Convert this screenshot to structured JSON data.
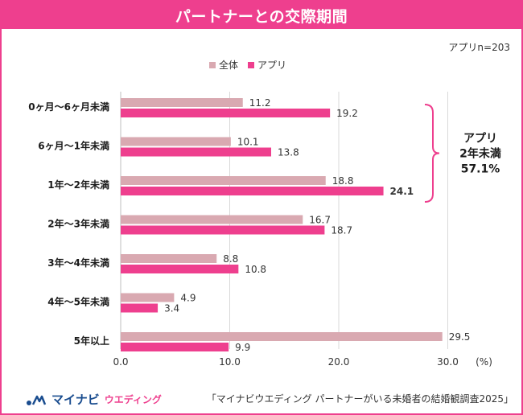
{
  "header": {
    "title": "パートナーとの交際期間"
  },
  "sample_note": "アプリn=203",
  "legend": [
    {
      "name": "全体",
      "color": "#d9a9b1"
    },
    {
      "name": "アプリ",
      "color": "#ee3f8e"
    }
  ],
  "chart_data": {
    "type": "bar",
    "orientation": "horizontal",
    "title": "パートナーとの交際期間",
    "categories": [
      "0ヶ月～6ヶ月未満",
      "6ヶ月～1年未満",
      "1年～2年未満",
      "2年～3年未満",
      "3年～4年未満",
      "4年～5年未満",
      "5年以上"
    ],
    "series": [
      {
        "name": "全体",
        "values": [
          11.2,
          10.1,
          18.8,
          16.7,
          8.8,
          4.9,
          29.5
        ],
        "color": "#d9a9b1"
      },
      {
        "name": "アプリ",
        "values": [
          19.2,
          13.8,
          24.1,
          18.7,
          10.8,
          3.4,
          9.9
        ],
        "color": "#ee3f8e"
      }
    ],
    "value_labels": {
      "全体": [
        "11.2",
        "10.1",
        "18.8",
        "16.7",
        "8.8",
        "4.9",
        "29.5"
      ],
      "アプリ": [
        "19.2",
        "13.8",
        "24.1",
        "18.7",
        "10.8",
        "3.4",
        "9.9"
      ]
    },
    "highlight": {
      "series": "アプリ",
      "category_index": 2
    },
    "x_ticks": [
      "0.0",
      "10.0",
      "20.0",
      "30.0"
    ],
    "x_tick_values": [
      0,
      10,
      20,
      30
    ],
    "unit_label": "(%)",
    "xlim": [
      0,
      30
    ],
    "grid": true,
    "annotation": {
      "lines": [
        "アプリ",
        "2年未満",
        "57.1%"
      ],
      "bracket_category_range": [
        0,
        2
      ]
    }
  },
  "footer": {
    "logo_main": "マイナビ",
    "logo_sub": "ウエディング",
    "source": "「マイナビウエディング パートナーがいる未婚者の結婚観調査2025」"
  }
}
